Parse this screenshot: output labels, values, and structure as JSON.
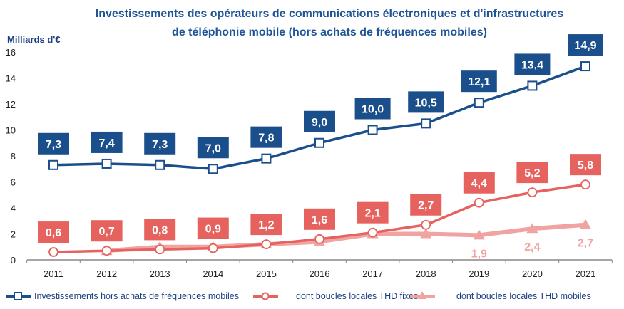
{
  "chart_data": {
    "type": "line",
    "title": [
      "Investissements des opérateurs de communications électroniques et d'infrastructures",
      "de téléphonie mobile (hors achats de fréquences mobiles)"
    ],
    "ylabel": "Milliards d'€",
    "xlabel": "",
    "ylim": [
      0,
      16
    ],
    "yticks": [
      "0",
      "2",
      "4",
      "6",
      "8",
      "10",
      "12",
      "14",
      "16"
    ],
    "categories": [
      "2011",
      "2012",
      "2013",
      "2014",
      "2015",
      "2016",
      "2017",
      "2018",
      "2019",
      "2020",
      "2021"
    ],
    "grid": false,
    "legend": "bottom",
    "series": [
      {
        "name": "Investissements hors achats de fréquences mobiles",
        "color": "#1a4f8b",
        "marker": "square",
        "values": [
          7.3,
          7.4,
          7.3,
          7.0,
          7.8,
          9.0,
          10.0,
          10.5,
          12.1,
          13.4,
          14.9
        ],
        "labels": [
          "7,3",
          "7,4",
          "7,3",
          "7,0",
          "7,8",
          "9,0",
          "10,0",
          "10,5",
          "12,1",
          "13,4",
          "14,9"
        ]
      },
      {
        "name": "dont boucles locales THD fixes",
        "color": "#e5625f",
        "marker": "circle",
        "values": [
          0.6,
          0.7,
          0.8,
          0.9,
          1.2,
          1.6,
          2.1,
          2.7,
          4.4,
          5.2,
          5.8
        ],
        "labels": [
          "0,6",
          "0,7",
          "0,8",
          "0,9",
          "1,2",
          "1,6",
          "2,1",
          "2,7",
          "4,4",
          "5,2",
          "5,8"
        ]
      },
      {
        "name": "dont boucles locales THD mobiles",
        "color": "#f0a3a1",
        "marker": "triangle",
        "values": [
          null,
          0.7,
          1.0,
          1.0,
          1.2,
          1.4,
          2.0,
          2.0,
          1.9,
          2.4,
          2.7
        ],
        "labels": [
          null,
          null,
          null,
          null,
          null,
          null,
          null,
          null,
          "1,9",
          "2,4",
          "2,7"
        ]
      }
    ]
  }
}
